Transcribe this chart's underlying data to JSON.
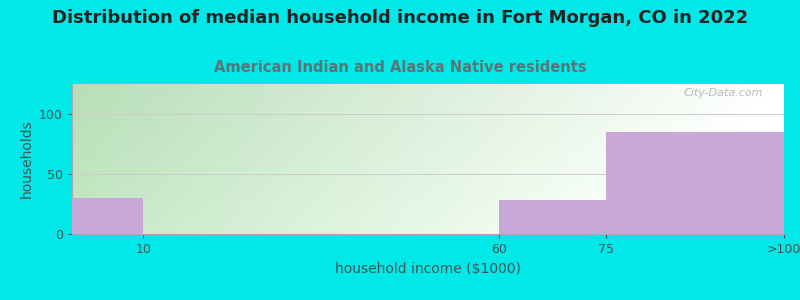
{
  "title": "Distribution of median household income in Fort Morgan, CO in 2022",
  "subtitle": "American Indian and Alaska Native residents",
  "xlabel": "household income ($1000)",
  "ylabel": "households",
  "bin_edges": [
    0,
    10,
    60,
    75,
    100
  ],
  "bin_labels": [
    "10",
    "60",
    "75",
    ">100"
  ],
  "values": [
    30,
    0,
    28,
    85
  ],
  "bar_color": "#c8a8d8",
  "bar_edgecolor": "#c8a8d8",
  "background_outer": "#00e8e8",
  "yticks": [
    0,
    50,
    100
  ],
  "ylim": [
    0,
    125
  ],
  "xlim": [
    0,
    100
  ],
  "title_fontsize": 13,
  "subtitle_fontsize": 10.5,
  "subtitle_color": "#557777",
  "axis_label_fontsize": 10,
  "tick_fontsize": 9,
  "watermark": "City-Data.com",
  "gradient_left": "#b8ddb8",
  "gradient_right": "#f5ffff"
}
